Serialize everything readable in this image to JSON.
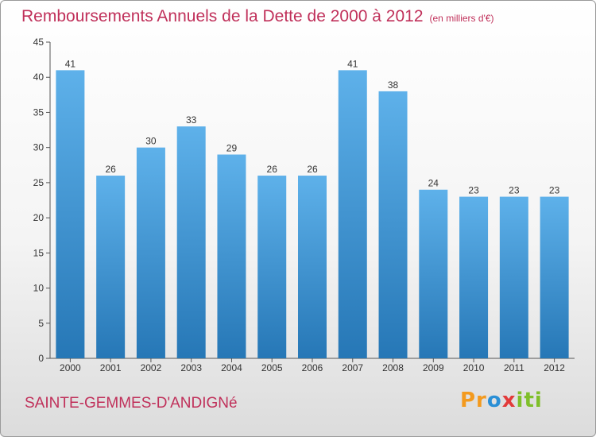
{
  "header": {
    "title": "Remboursements Annuels de la Dette de 2000 à 2012",
    "subtitle": "(en milliers d'€)"
  },
  "footer": {
    "commune": "SAINTE-GEMMES-D'ANDIGNé",
    "logo_text": "Proxiti"
  },
  "colors": {
    "accent": "#c0305a",
    "bar_top": "#5eb1ea",
    "bar_bottom": "#2677b6"
  },
  "chart_data": {
    "type": "bar",
    "title": "Remboursements Annuels de la Dette de 2000 à 2012",
    "subtitle": "(en milliers d'€)",
    "categories": [
      "2000",
      "2001",
      "2002",
      "2003",
      "2004",
      "2005",
      "2006",
      "2007",
      "2008",
      "2009",
      "2010",
      "2011",
      "2012"
    ],
    "values": [
      41,
      26,
      30,
      33,
      29,
      26,
      26,
      41,
      38,
      24,
      23,
      23,
      23
    ],
    "ylim": [
      0,
      45
    ],
    "yticks": [
      0,
      5,
      10,
      15,
      20,
      25,
      30,
      35,
      40,
      45
    ],
    "grid": false,
    "legend": "none"
  }
}
